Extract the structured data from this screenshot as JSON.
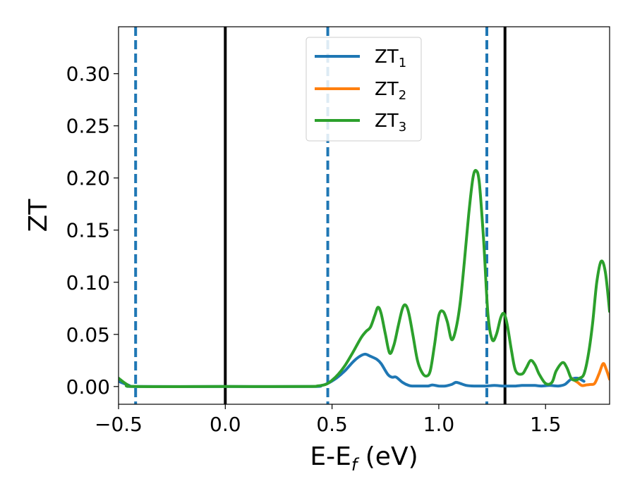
{
  "chart_data": {
    "type": "line",
    "xlabel": "E-E",
    "xlabel_sub": "f",
    "xlabel_unit": " (eV)",
    "ylabel": "ZT",
    "xlim": [
      -0.5,
      1.8
    ],
    "ylim": [
      -0.017,
      0.345
    ],
    "xticks": [
      -0.5,
      0.0,
      0.5,
      1.0,
      1.5
    ],
    "xtick_labels": [
      "−0.5",
      "0.0",
      "0.5",
      "1.0",
      "1.5"
    ],
    "yticks": [
      0.0,
      0.05,
      0.1,
      0.15,
      0.2,
      0.25,
      0.3
    ],
    "ytick_labels": [
      "0.00",
      "0.05",
      "0.10",
      "0.15",
      "0.20",
      "0.25",
      "0.30"
    ],
    "grid": false,
    "legend_position": "top-center",
    "vlines": [
      {
        "x": 0.0,
        "style": "solid",
        "color": "#000000"
      },
      {
        "x": 1.31,
        "style": "solid",
        "color": "#000000"
      },
      {
        "x": -0.42,
        "style": "dashed",
        "color": "#1f77b4"
      },
      {
        "x": 0.48,
        "style": "dashed",
        "color": "#1f77b4"
      },
      {
        "x": 1.225,
        "style": "dashed",
        "color": "#1f77b4"
      }
    ],
    "series": [
      {
        "name": "ZT",
        "name_sub": "1",
        "color": "#1f77b4",
        "x": [
          -0.5,
          -0.45,
          -0.42,
          0.0,
          0.4,
          0.45,
          0.48,
          0.52,
          0.56,
          0.6,
          0.63,
          0.655,
          0.68,
          0.71,
          0.73,
          0.76,
          0.78,
          0.8,
          0.83,
          0.86,
          0.88,
          0.92,
          0.95,
          0.97,
          1.0,
          1.03,
          1.06,
          1.08,
          1.1,
          1.13,
          1.17,
          1.22,
          1.26,
          1.3,
          1.33,
          1.36,
          1.39,
          1.42,
          1.45,
          1.48,
          1.52,
          1.56,
          1.59,
          1.62,
          1.65,
          1.68
        ],
        "y": [
          0.005,
          0.001,
          0.0,
          0.0,
          0.0,
          0.001,
          0.003,
          0.008,
          0.015,
          0.024,
          0.029,
          0.031,
          0.029,
          0.026,
          0.022,
          0.012,
          0.009,
          0.009,
          0.004,
          0.001,
          0.0005,
          0.0005,
          0.0005,
          0.0015,
          0.0005,
          0.0005,
          0.002,
          0.004,
          0.003,
          0.001,
          0.0005,
          0.0005,
          0.001,
          0.0005,
          0.0005,
          0.0005,
          0.001,
          0.001,
          0.001,
          0.0005,
          0.001,
          0.0005,
          0.002,
          0.007,
          0.008,
          0.005
        ]
      },
      {
        "name": "ZT",
        "name_sub": "2",
        "color": "#ff7f0e",
        "x": [
          1.62,
          1.65,
          1.67,
          1.69,
          1.71,
          1.73,
          1.75,
          1.77,
          1.785,
          1.8
        ],
        "y": [
          0.008,
          0.004,
          0.001,
          0.0015,
          0.002,
          0.003,
          0.012,
          0.022,
          0.016,
          0.007
        ]
      },
      {
        "name": "ZT",
        "name_sub": "3",
        "color": "#2ca02c",
        "x": [
          -0.5,
          -0.46,
          -0.42,
          0.0,
          0.38,
          0.43,
          0.47,
          0.5,
          0.53,
          0.56,
          0.59,
          0.62,
          0.64,
          0.66,
          0.68,
          0.7,
          0.715,
          0.73,
          0.75,
          0.77,
          0.79,
          0.81,
          0.83,
          0.845,
          0.86,
          0.88,
          0.9,
          0.92,
          0.94,
          0.96,
          0.98,
          1.0,
          1.02,
          1.04,
          1.06,
          1.08,
          1.1,
          1.12,
          1.14,
          1.16,
          1.175,
          1.19,
          1.21,
          1.23,
          1.25,
          1.27,
          1.29,
          1.305,
          1.32,
          1.34,
          1.36,
          1.39,
          1.41,
          1.43,
          1.45,
          1.47,
          1.5,
          1.53,
          1.55,
          1.58,
          1.6,
          1.62,
          1.64,
          1.66,
          1.68,
          1.7,
          1.72,
          1.74,
          1.76,
          1.78,
          1.8
        ],
        "y": [
          0.008,
          0.002,
          0.0,
          0.0,
          0.0,
          0.0005,
          0.002,
          0.006,
          0.012,
          0.02,
          0.03,
          0.041,
          0.048,
          0.053,
          0.057,
          0.068,
          0.076,
          0.07,
          0.05,
          0.032,
          0.04,
          0.058,
          0.075,
          0.078,
          0.07,
          0.048,
          0.025,
          0.014,
          0.01,
          0.015,
          0.04,
          0.068,
          0.072,
          0.062,
          0.045,
          0.055,
          0.08,
          0.12,
          0.165,
          0.2,
          0.207,
          0.195,
          0.14,
          0.07,
          0.045,
          0.05,
          0.066,
          0.07,
          0.06,
          0.035,
          0.015,
          0.012,
          0.018,
          0.025,
          0.021,
          0.012,
          0.003,
          0.004,
          0.015,
          0.023,
          0.018,
          0.008,
          0.006,
          0.008,
          0.012,
          0.03,
          0.06,
          0.1,
          0.12,
          0.11,
          0.072
        ]
      }
    ]
  }
}
